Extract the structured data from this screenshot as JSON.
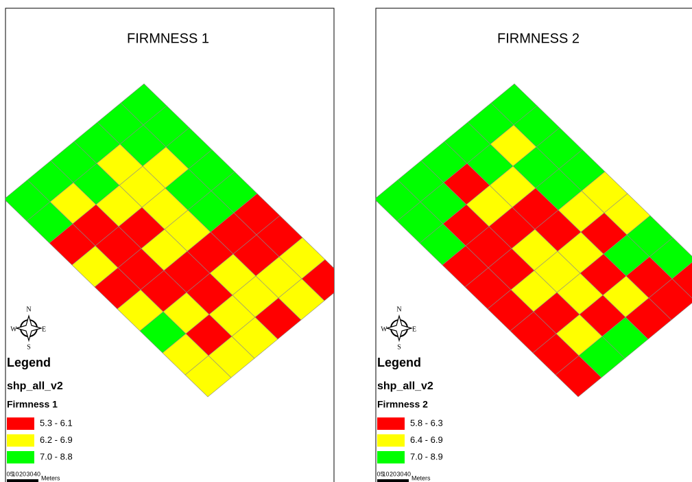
{
  "panels": [
    {
      "title": "FIRMNESS 1",
      "legend": {
        "title": "Legend",
        "layer": "shp_all_v2",
        "field": "Firmness 1",
        "classes": [
          {
            "label": "5.3 - 6.1",
            "color": "#ff0000"
          },
          {
            "label": "6.2 - 6.9",
            "color": "#ffff00"
          },
          {
            "label": "7.0 - 8.8",
            "color": "#00ff00"
          }
        ]
      },
      "compass": {
        "n": "N",
        "s": "S",
        "e": "E",
        "w": "W"
      },
      "scale": {
        "ticks": [
          0,
          5,
          10,
          20,
          30,
          40
        ],
        "unit": "Meters"
      }
    },
    {
      "title": "FIRMNESS 2",
      "legend": {
        "title": "Legend",
        "layer": "shp_all_v2",
        "field": "Firmness 2",
        "classes": [
          {
            "label": "5.8 - 6.3",
            "color": "#ff0000"
          },
          {
            "label": "6.4 - 6.9",
            "color": "#ffff00"
          },
          {
            "label": "7.0 - 8.9",
            "color": "#00ff00"
          }
        ]
      },
      "compass": {
        "n": "N",
        "s": "S",
        "e": "E",
        "w": "W"
      },
      "scale": {
        "ticks": [
          0,
          5,
          10,
          20,
          30,
          40
        ],
        "unit": "Meters"
      }
    }
  ]
}
